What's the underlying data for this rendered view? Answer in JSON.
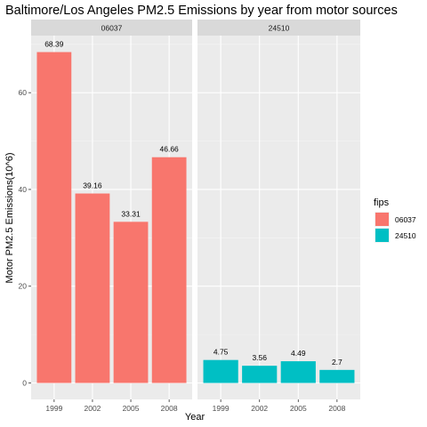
{
  "chart_data": {
    "type": "bar",
    "title": "Baltimore/Los Angeles PM2.5 Emissions by year from motor sources",
    "xlabel": "Year",
    "ylabel": "Motor PM2.5 Emissions(10^6)",
    "categories": [
      "1999",
      "2002",
      "2005",
      "2008"
    ],
    "ylim": [
      -3.4,
      71.8
    ],
    "yticks": [
      0,
      20,
      40,
      60
    ],
    "grid": true,
    "legend": {
      "title": "fips",
      "position": "right",
      "entries": [
        "06037",
        "24510"
      ]
    },
    "facets": [
      {
        "name": "06037",
        "color": "#F8766D",
        "values": [
          68.39,
          39.16,
          33.31,
          46.66
        ],
        "labels": [
          "68.39",
          "39.16",
          "33.31",
          "46.66"
        ]
      },
      {
        "name": "24510",
        "color": "#00BFC4",
        "values": [
          4.75,
          3.56,
          4.49,
          2.7
        ],
        "labels": [
          "4.75",
          "3.56",
          "4.49",
          "2.7"
        ]
      }
    ]
  }
}
